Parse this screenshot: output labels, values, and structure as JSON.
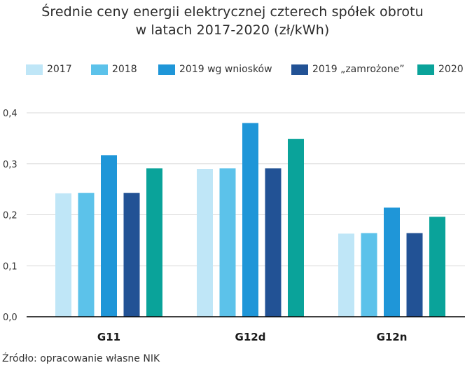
{
  "title_line1": "Średnie ceny energii elektrycznej czterech spółek obrotu",
  "title_line2": "w latach 2017-2020  (zł/kWh)",
  "source": "Źródło: opracowanie własne NIK",
  "chart_data": {
    "type": "bar",
    "title": "Średnie ceny energii elektrycznej czterech spółek obrotu w latach 2017-2020  (zł/kWh)",
    "xlabel": "",
    "ylabel": "",
    "categories": [
      "G11",
      "G12d",
      "G12n"
    ],
    "ylim": [
      0,
      0.4
    ],
    "yticks": [
      0,
      0.1,
      0.2,
      0.3,
      0.4
    ],
    "ytick_labels": [
      "0,0",
      "0,1",
      "0,2",
      "0,3",
      "0,4"
    ],
    "grid": true,
    "legend_position": "top",
    "series": [
      {
        "name": "2017",
        "color": "#bfe6f7",
        "values": [
          0.242,
          0.29,
          0.163
        ]
      },
      {
        "name": "2018",
        "color": "#5cc2ea",
        "values": [
          0.243,
          0.291,
          0.164
        ]
      },
      {
        "name": "2019 wg wniosków",
        "color": "#1f96d8",
        "values": [
          0.317,
          0.38,
          0.214
        ]
      },
      {
        "name": "2019 „zamrożone”",
        "color": "#225295",
        "values": [
          0.243,
          0.291,
          0.164
        ]
      },
      {
        "name": "2020",
        "color": "#0aa39a",
        "values": [
          0.291,
          0.349,
          0.196
        ]
      }
    ]
  }
}
